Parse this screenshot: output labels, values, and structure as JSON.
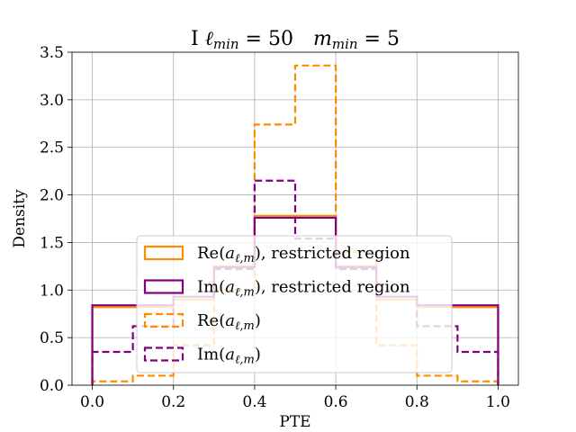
{
  "chart_data": {
    "type": "histogram",
    "title": "I ℓ_min = 50   m_min = 5",
    "title_parts": {
      "prefix": "I ",
      "l_sym": "ℓ",
      "l_sub": "min",
      "l_val": " = 50",
      "m_sym": "m",
      "m_sub": "min",
      "m_val": " = 5"
    },
    "xlabel": "PTE",
    "ylabel": "Density",
    "xlim": [
      -0.05,
      1.05
    ],
    "ylim": [
      0.0,
      3.5
    ],
    "xticks": [
      0.0,
      0.2,
      0.4,
      0.6,
      0.8,
      1.0
    ],
    "xtick_labels": [
      "0.0",
      "0.2",
      "0.4",
      "0.6",
      "0.8",
      "1.0"
    ],
    "yticks": [
      0.0,
      0.5,
      1.0,
      1.5,
      2.0,
      2.5,
      3.0,
      3.5
    ],
    "ytick_labels": [
      "0.0",
      "0.5",
      "1.0",
      "1.5",
      "2.0",
      "2.5",
      "3.0",
      "3.5"
    ],
    "grid": true,
    "legend_position": "lower-center",
    "bin_edges": [
      0.0,
      0.1,
      0.2,
      0.3,
      0.4,
      0.5,
      0.6,
      0.7,
      0.8,
      0.9,
      1.0
    ],
    "series": [
      {
        "name": "Re(a_{ℓ,m}), restricted region",
        "legend_label": {
          "fn": "Re(",
          "sym": "a",
          "sub": "ℓ,m",
          "tail": "), restricted region"
        },
        "color": "#ff8c00",
        "linestyle": "solid",
        "values": [
          0.82,
          0.82,
          0.9,
          1.25,
          1.78,
          1.78,
          1.25,
          0.9,
          0.82,
          0.82
        ]
      },
      {
        "name": "Im(a_{ℓ,m}), restricted region",
        "legend_label": {
          "fn": "Im(",
          "sym": "a",
          "sub": "ℓ,m",
          "tail": "), restricted region"
        },
        "color": "#800080",
        "linestyle": "solid",
        "values": [
          0.84,
          0.84,
          0.93,
          1.24,
          1.76,
          1.76,
          1.24,
          0.93,
          0.84,
          0.84
        ]
      },
      {
        "name": "Re(a_{ℓ,m})",
        "legend_label": {
          "fn": "Re(",
          "sym": "a",
          "sub": "ℓ,m",
          "tail": ")"
        },
        "color": "#ff8c00",
        "linestyle": "dashed",
        "values": [
          0.04,
          0.1,
          0.42,
          1.0,
          2.74,
          3.36,
          1.4,
          0.42,
          0.1,
          0.04
        ]
      },
      {
        "name": "Im(a_{ℓ,m})",
        "legend_label": {
          "fn": "Im(",
          "sym": "a",
          "sub": "ℓ,m",
          "tail": ")"
        },
        "color": "#800080",
        "linestyle": "dashed",
        "values": [
          0.35,
          0.62,
          0.9,
          1.22,
          2.15,
          1.54,
          1.22,
          0.9,
          0.62,
          0.35
        ]
      }
    ]
  }
}
